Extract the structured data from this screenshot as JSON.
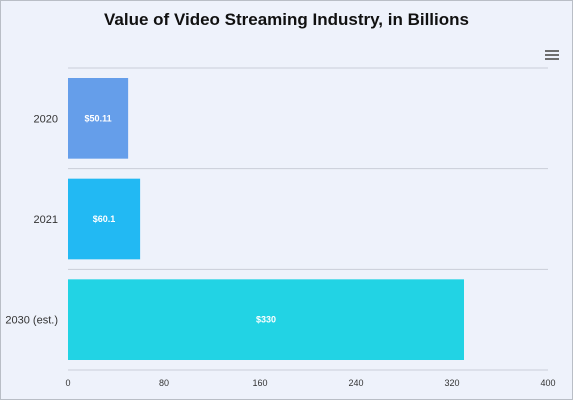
{
  "chart_data": {
    "type": "bar",
    "orientation": "horizontal",
    "title": "Value of Video Streaming Industry, in Billions",
    "xlabel": "",
    "ylabel": "",
    "categories": [
      "2020",
      "2021",
      "2030 (est.)"
    ],
    "values": [
      50.11,
      60.1,
      330
    ],
    "data_labels": [
      "$50.11",
      "$60.1",
      "$330"
    ],
    "xlim": [
      0,
      400
    ],
    "x_ticks": [
      "0",
      "80",
      "160",
      "240",
      "320",
      "400"
    ],
    "bar_colors": [
      "#659eea",
      "#22b9f3",
      "#22d3e4"
    ],
    "grid": true,
    "legend": "none"
  },
  "toolbar": {
    "menu_icon": "hamburger-menu-icon"
  }
}
